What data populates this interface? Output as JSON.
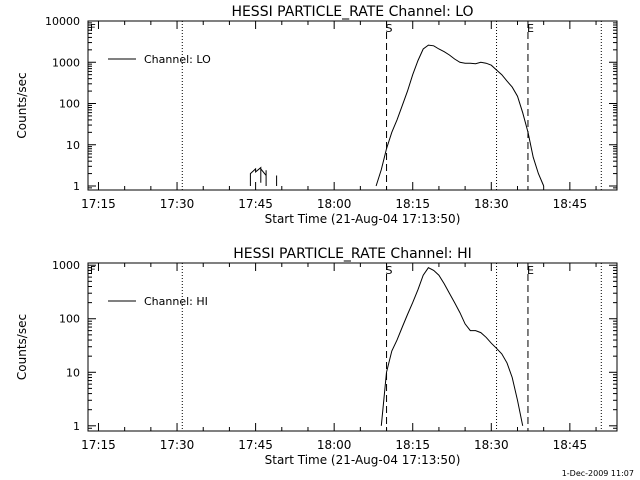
{
  "charts": [
    {
      "type": "line",
      "title": "HESSI PARTICLE_RATE Channel: LO",
      "xlabel": "Start Time (21-Aug-04 17:13:50)",
      "ylabel": "Counts/sec",
      "y_scale": "log",
      "ylim": [
        0.8,
        10000
      ],
      "y_ticks": [
        1,
        10,
        100,
        1000,
        10000
      ],
      "y_tick_labels": [
        "1",
        "10",
        "100",
        "1000",
        "10000"
      ],
      "xlim": [
        "17:13",
        "18:54"
      ],
      "x_ticks": [
        "17:15",
        "17:30",
        "17:45",
        "18:00",
        "18:15",
        "18:30",
        "18:45"
      ],
      "legend": {
        "label": "Channel: LO",
        "placement": "top-left"
      },
      "vlines_dotted": [
        "17:31",
        "18:31",
        "18:51"
      ],
      "vlines_dashed": [
        {
          "x": "18:10",
          "label": "S"
        },
        {
          "x": "18:37",
          "label": "E"
        }
      ],
      "corner_label": "F",
      "series": [
        {
          "name": "Channel: LO",
          "segments": [
            [
              [
                "17:44",
                "1"
              ],
              [
                "17:44",
                "2"
              ],
              [
                "17:45",
                "2.6"
              ],
              [
                "17:45",
                "2.2"
              ],
              [
                "17:46",
                "2.8"
              ],
              [
                "17:46",
                "1.2"
              ],
              [
                "17:46",
                "2.6"
              ],
              [
                "17:47",
                "1.8"
              ],
              [
                "17:47",
                "2.4"
              ],
              [
                "17:47",
                "1"
              ]
            ],
            [
              [
                "17:49",
                "1"
              ],
              [
                "17:49",
                "1.8"
              ],
              [
                "17:49",
                "1"
              ]
            ],
            [
              [
                "18:08",
                "1"
              ],
              [
                "18:09",
                "2.5"
              ],
              [
                "18:10",
                "8"
              ],
              [
                "18:11",
                "20"
              ],
              [
                "18:12",
                "40"
              ],
              [
                "18:13",
                "90"
              ],
              [
                "18:14",
                "200"
              ],
              [
                "18:15",
                "500"
              ],
              [
                "18:16",
                "1100"
              ],
              [
                "18:17",
                "2100"
              ],
              [
                "18:18",
                "2600"
              ],
              [
                "18:19",
                "2500"
              ],
              [
                "18:20",
                "2100"
              ],
              [
                "18:21",
                "1800"
              ],
              [
                "18:22",
                "1500"
              ],
              [
                "18:23",
                "1200"
              ],
              [
                "18:24",
                "1000"
              ],
              [
                "18:25",
                "950"
              ],
              [
                "18:26",
                "950"
              ],
              [
                "18:27",
                "920"
              ],
              [
                "18:28",
                "1000"
              ],
              [
                "18:29",
                "950"
              ],
              [
                "18:30",
                "850"
              ],
              [
                "18:31",
                "650"
              ],
              [
                "18:32",
                "500"
              ],
              [
                "18:33",
                "350"
              ],
              [
                "18:34",
                "250"
              ],
              [
                "18:35",
                "150"
              ],
              [
                "18:36",
                "60"
              ],
              [
                "18:37",
                "20"
              ],
              [
                "18:38",
                "5"
              ],
              [
                "18:39",
                "2"
              ],
              [
                "18:40",
                "1"
              ]
            ]
          ]
        }
      ]
    },
    {
      "type": "line",
      "title": "HESSI PARTICLE_RATE Channel: HI",
      "xlabel": "Start Time (21-Aug-04 17:13:50)",
      "ylabel": "Counts/sec",
      "y_scale": "log",
      "ylim": [
        0.8,
        1100
      ],
      "y_ticks": [
        1,
        10,
        100,
        1000
      ],
      "y_tick_labels": [
        "1",
        "10",
        "100",
        "1000"
      ],
      "xlim": [
        "17:13",
        "18:54"
      ],
      "x_ticks": [
        "17:15",
        "17:30",
        "17:45",
        "18:00",
        "18:15",
        "18:30",
        "18:45"
      ],
      "legend": {
        "label": "Channel: HI",
        "placement": "top-left"
      },
      "vlines_dotted": [
        "17:31",
        "18:31",
        "18:51"
      ],
      "vlines_dashed": [
        {
          "x": "18:10",
          "label": "S"
        },
        {
          "x": "18:37",
          "label": "E"
        }
      ],
      "corner_label": "F",
      "series": [
        {
          "name": "Channel: HI",
          "segments": [
            [
              [
                "18:09",
                "1"
              ],
              [
                "18:10",
                "10"
              ],
              [
                "18:11",
                "25"
              ],
              [
                "18:12",
                "40"
              ],
              [
                "18:13",
                "70"
              ],
              [
                "18:14",
                "120"
              ],
              [
                "18:15",
                "200"
              ],
              [
                "18:16",
                "350"
              ],
              [
                "18:17",
                "650"
              ],
              [
                "18:18",
                "900"
              ],
              [
                "18:19",
                "800"
              ],
              [
                "18:20",
                "650"
              ],
              [
                "18:21",
                "450"
              ],
              [
                "18:22",
                "300"
              ],
              [
                "18:23",
                "200"
              ],
              [
                "18:24",
                "130"
              ],
              [
                "18:25",
                "80"
              ],
              [
                "18:26",
                "60"
              ],
              [
                "18:27",
                "60"
              ],
              [
                "18:28",
                "55"
              ],
              [
                "18:29",
                "45"
              ],
              [
                "18:30",
                "35"
              ],
              [
                "18:31",
                "28"
              ],
              [
                "18:32",
                "22"
              ],
              [
                "18:33",
                "15"
              ],
              [
                "18:34",
                "8"
              ],
              [
                "18:35",
                "3"
              ],
              [
                "18:36",
                "1"
              ]
            ]
          ]
        }
      ]
    }
  ],
  "timestamp": "1-Dec-2009 11:07"
}
